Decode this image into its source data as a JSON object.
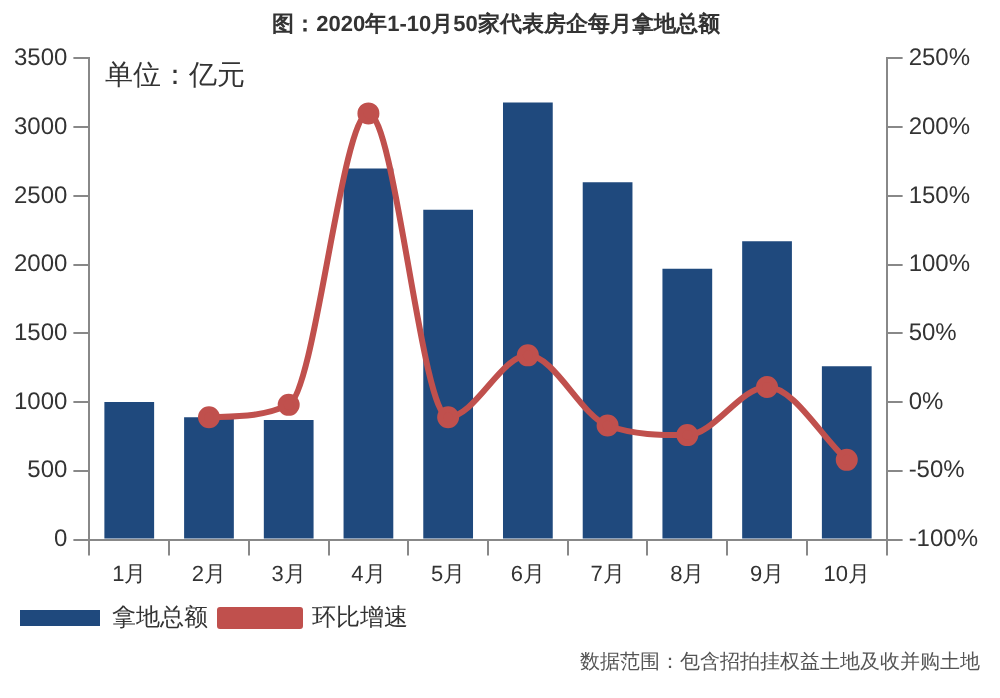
{
  "chart_data": {
    "type": "bar",
    "title": "图：2020年1-10月50家代表房企每月拿地总额",
    "ylabel": "单位：亿元",
    "categories": [
      "1月",
      "2月",
      "3月",
      "4月",
      "5月",
      "6月",
      "7月",
      "8月",
      "9月",
      "10月"
    ],
    "series": [
      {
        "name": "拿地总额",
        "color": "#1f497d",
        "values": [
          1000,
          890,
          870,
          2700,
          2400,
          3180,
          2600,
          1970,
          2170,
          1260
        ]
      },
      {
        "name": "环比增速",
        "type": "line",
        "axis": "y2",
        "color": "#c0504d",
        "values": [
          null,
          -11,
          -2,
          210,
          -11,
          34,
          -17,
          -24,
          11,
          -42
        ]
      }
    ],
    "ylim": [
      0,
      3500
    ],
    "yticks": [
      0,
      500,
      1000,
      1500,
      2000,
      2500,
      3000,
      3500
    ],
    "y2lim": [
      -100,
      250
    ],
    "y2ticks": [
      {
        "value": -100,
        "label": "-100%"
      },
      {
        "value": -50,
        "label": "-50%"
      },
      {
        "value": 0,
        "label": "0%"
      },
      {
        "value": 50,
        "label": "50%"
      },
      {
        "value": 100,
        "label": "100%"
      },
      {
        "value": 150,
        "label": "150%"
      },
      {
        "value": 200,
        "label": "200%"
      },
      {
        "value": 250,
        "label": "250%"
      }
    ],
    "marker": "circle",
    "legend": "bottom",
    "annotations": [
      "数据范围：包含招拍挂权益土地及收并购土地"
    ]
  }
}
